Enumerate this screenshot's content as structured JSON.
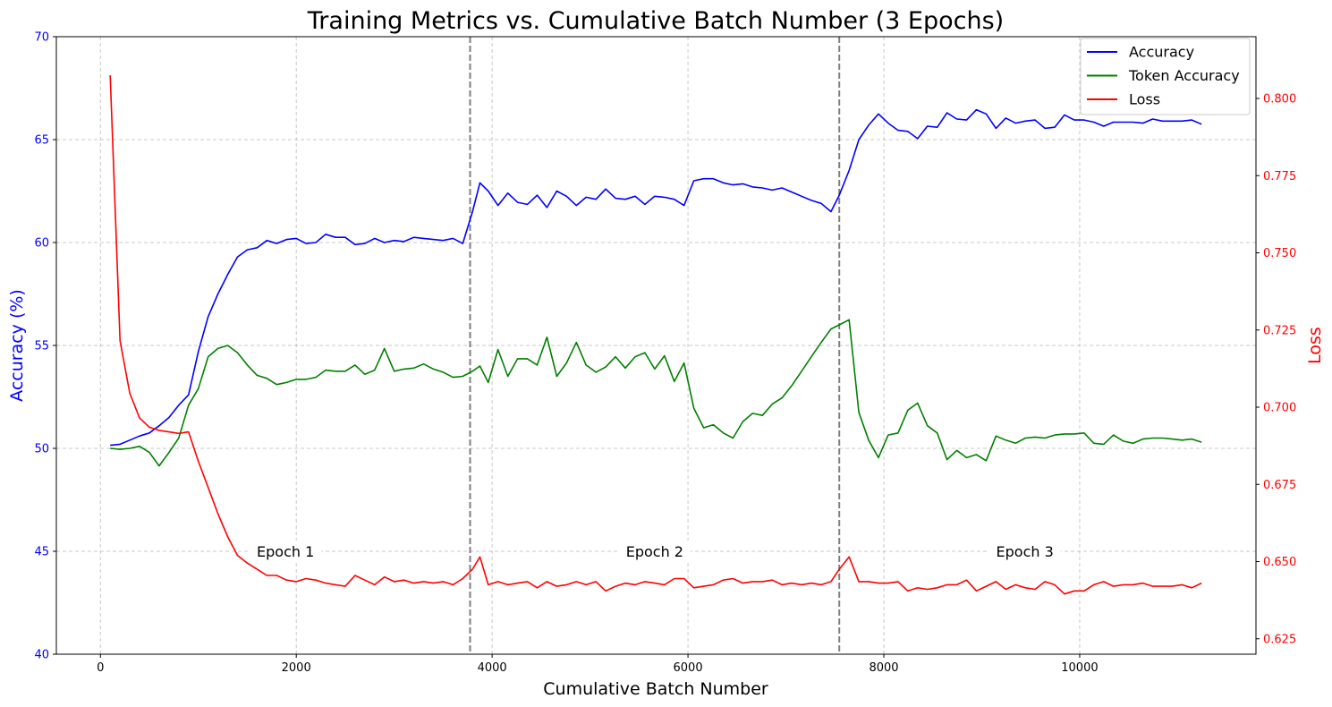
{
  "chart_data": {
    "type": "line",
    "title": "Training Metrics vs. Cumulative Batch Number (3 Epochs)",
    "xlabel": "Cumulative Batch Number",
    "ylabel_left": "Accuracy (%)",
    "ylabel_right": "Loss",
    "xlim": [
      -450,
      11800
    ],
    "ylim_left": [
      40,
      70
    ],
    "ylim_right": [
      0.62,
      0.82
    ],
    "x_ticks": [
      0,
      2000,
      4000,
      6000,
      8000,
      10000
    ],
    "y_left_ticks": [
      40,
      45,
      50,
      55,
      60,
      65,
      70
    ],
    "y_right_ticks": [
      0.625,
      0.65,
      0.675,
      0.7,
      0.725,
      0.75,
      0.775,
      0.8
    ],
    "grid": true,
    "legend_position": "top-right",
    "colors": {
      "accuracy": "#0000ff",
      "token_accuracy": "#008000",
      "loss": "#ff0000",
      "epoch_line": "#7f7f7f",
      "left_axis": "#0000ff",
      "right_axis": "#ff0000"
    },
    "epoch_boundaries": [
      3775,
      7545
    ],
    "epoch_labels": [
      {
        "text": "Epoch 1",
        "x": 1890,
        "y": 45
      },
      {
        "text": "Epoch 2",
        "x": 5660,
        "y": 45
      },
      {
        "text": "Epoch 3",
        "x": 9440,
        "y": 45
      }
    ],
    "series": [
      {
        "name": "Accuracy",
        "axis": "left",
        "color": "#0000ff",
        "x": [
          100,
          200,
          300,
          400,
          500,
          600,
          700,
          800,
          900,
          1000,
          1100,
          1200,
          1300,
          1400,
          1500,
          1600,
          1700,
          1800,
          1900,
          2000,
          2100,
          2200,
          2300,
          2400,
          2500,
          2600,
          2700,
          2800,
          2900,
          3000,
          3100,
          3200,
          3300,
          3400,
          3500,
          3600,
          3700,
          3800,
          3875,
          3960,
          4060,
          4160,
          4260,
          4360,
          4460,
          4560,
          4660,
          4760,
          4860,
          4960,
          5060,
          5160,
          5260,
          5360,
          5460,
          5560,
          5660,
          5760,
          5860,
          5960,
          6060,
          6160,
          6260,
          6360,
          6460,
          6560,
          6660,
          6760,
          6860,
          6960,
          7060,
          7160,
          7260,
          7360,
          7460,
          7545,
          7645,
          7745,
          7845,
          7945,
          8045,
          8145,
          8245,
          8345,
          8445,
          8545,
          8645,
          8745,
          8845,
          8945,
          9045,
          9145,
          9245,
          9345,
          9445,
          9545,
          9645,
          9745,
          9845,
          9945,
          10045,
          10145,
          10245,
          10345,
          10445,
          10545,
          10645,
          10745,
          10845,
          10945,
          11045,
          11145,
          11245
        ],
        "values": [
          50.15,
          50.2,
          50.4,
          50.6,
          50.75,
          51.1,
          51.5,
          52.1,
          52.6,
          54.7,
          56.4,
          57.5,
          58.45,
          59.3,
          59.65,
          59.75,
          60.1,
          59.95,
          60.15,
          60.2,
          59.95,
          60.0,
          60.4,
          60.25,
          60.25,
          59.9,
          59.95,
          60.2,
          60.0,
          60.1,
          60.05,
          60.25,
          60.2,
          60.15,
          60.1,
          60.2,
          59.95,
          61.5,
          62.9,
          62.5,
          61.8,
          62.4,
          61.95,
          61.85,
          62.3,
          61.7,
          62.5,
          62.25,
          61.8,
          62.2,
          62.1,
          62.6,
          62.15,
          62.1,
          62.25,
          61.85,
          62.25,
          62.2,
          62.1,
          61.8,
          63.0,
          63.1,
          63.1,
          62.9,
          62.8,
          62.85,
          62.7,
          62.65,
          62.55,
          62.65,
          62.45,
          62.25,
          62.05,
          61.9,
          61.5,
          62.3,
          63.5,
          65.0,
          65.7,
          66.25,
          65.8,
          65.45,
          65.4,
          65.05,
          65.65,
          65.6,
          66.3,
          66.0,
          65.95,
          66.45,
          66.25,
          65.55,
          66.05,
          65.8,
          65.9,
          65.95,
          65.55,
          65.6,
          66.2,
          65.95,
          65.95,
          65.85,
          65.65,
          65.85,
          65.85,
          65.85,
          65.8,
          66.0,
          65.9,
          65.9,
          65.9,
          65.95,
          65.75
        ]
      },
      {
        "name": "Token Accuracy",
        "axis": "left",
        "color": "#008000",
        "x": [
          100,
          200,
          300,
          400,
          500,
          600,
          700,
          800,
          900,
          1000,
          1100,
          1200,
          1300,
          1400,
          1500,
          1600,
          1700,
          1800,
          1900,
          2000,
          2100,
          2200,
          2300,
          2400,
          2500,
          2600,
          2700,
          2800,
          2900,
          3000,
          3100,
          3200,
          3300,
          3400,
          3500,
          3600,
          3700,
          3800,
          3875,
          3960,
          4060,
          4160,
          4260,
          4360,
          4460,
          4560,
          4660,
          4760,
          4860,
          4960,
          5060,
          5160,
          5260,
          5360,
          5460,
          5560,
          5660,
          5760,
          5860,
          5960,
          6060,
          6160,
          6260,
          6360,
          6460,
          6560,
          6660,
          6760,
          6860,
          6960,
          7060,
          7160,
          7260,
          7360,
          7460,
          7545,
          7645,
          7745,
          7845,
          7945,
          8045,
          8145,
          8245,
          8345,
          8445,
          8545,
          8645,
          8745,
          8845,
          8945,
          9045,
          9145,
          9245,
          9345,
          9445,
          9545,
          9645,
          9745,
          9845,
          9945,
          10045,
          10145,
          10245,
          10345,
          10445,
          10545,
          10645,
          10745,
          10845,
          10945,
          11045,
          11145,
          11245
        ],
        "values": [
          50.0,
          49.95,
          50.0,
          50.1,
          49.8,
          49.15,
          49.8,
          50.5,
          52.1,
          52.9,
          54.45,
          54.85,
          55.0,
          54.65,
          54.05,
          53.55,
          53.4,
          53.1,
          53.2,
          53.35,
          53.35,
          53.45,
          53.8,
          53.75,
          53.75,
          54.05,
          53.6,
          53.8,
          54.85,
          53.75,
          53.85,
          53.9,
          54.1,
          53.85,
          53.7,
          53.45,
          53.5,
          53.75,
          54.0,
          53.2,
          54.8,
          53.5,
          54.35,
          54.35,
          54.05,
          55.4,
          53.5,
          54.15,
          55.15,
          54.05,
          53.7,
          53.95,
          54.45,
          53.9,
          54.45,
          54.65,
          53.85,
          54.5,
          53.25,
          54.15,
          51.95,
          51.0,
          51.15,
          50.75,
          50.5,
          51.3,
          51.7,
          51.6,
          52.15,
          52.45,
          53.05,
          53.75,
          54.45,
          55.15,
          55.8,
          56.0,
          56.25,
          51.75,
          50.4,
          49.55,
          50.65,
          50.75,
          51.85,
          52.2,
          51.1,
          50.75,
          49.45,
          49.9,
          49.55,
          49.7,
          49.4,
          50.6,
          50.4,
          50.25,
          50.5,
          50.55,
          50.5,
          50.65,
          50.7,
          50.7,
          50.75,
          50.25,
          50.2,
          50.65,
          50.35,
          50.25,
          50.45,
          50.5,
          50.5,
          50.45,
          50.4,
          50.45,
          50.3
        ]
      },
      {
        "name": "Loss",
        "axis": "right",
        "color": "#ff0000",
        "x": [
          100,
          200,
          300,
          400,
          500,
          600,
          700,
          800,
          900,
          1000,
          1100,
          1200,
          1300,
          1400,
          1500,
          1600,
          1700,
          1800,
          1900,
          2000,
          2100,
          2200,
          2300,
          2400,
          2500,
          2600,
          2700,
          2800,
          2900,
          3000,
          3100,
          3200,
          3300,
          3400,
          3500,
          3600,
          3700,
          3800,
          3875,
          3960,
          4060,
          4160,
          4260,
          4360,
          4460,
          4560,
          4660,
          4760,
          4860,
          4960,
          5060,
          5160,
          5260,
          5360,
          5460,
          5560,
          5660,
          5760,
          5860,
          5960,
          6060,
          6160,
          6260,
          6360,
          6460,
          6560,
          6660,
          6760,
          6860,
          6960,
          7060,
          7160,
          7260,
          7360,
          7460,
          7545,
          7645,
          7745,
          7845,
          7945,
          8045,
          8145,
          8245,
          8345,
          8445,
          8545,
          8645,
          8745,
          8845,
          8945,
          9045,
          9145,
          9245,
          9345,
          9445,
          9545,
          9645,
          9745,
          9845,
          9945,
          10045,
          10145,
          10245,
          10345,
          10445,
          10545,
          10645,
          10745,
          10845,
          10945,
          11045,
          11145,
          11245
        ],
        "values": [
          0.8075,
          0.7215,
          0.7045,
          0.6965,
          0.6935,
          0.6925,
          0.692,
          0.6915,
          0.692,
          0.6825,
          0.674,
          0.6655,
          0.658,
          0.652,
          0.6495,
          0.6475,
          0.6455,
          0.6455,
          0.644,
          0.6435,
          0.6445,
          0.644,
          0.643,
          0.6425,
          0.642,
          0.6455,
          0.644,
          0.6425,
          0.645,
          0.6435,
          0.644,
          0.643,
          0.6435,
          0.643,
          0.6435,
          0.6425,
          0.6445,
          0.6475,
          0.6515,
          0.6425,
          0.6435,
          0.6425,
          0.643,
          0.6435,
          0.6415,
          0.6435,
          0.642,
          0.6425,
          0.6435,
          0.6425,
          0.6435,
          0.6405,
          0.642,
          0.643,
          0.6425,
          0.6435,
          0.643,
          0.6425,
          0.6445,
          0.6445,
          0.6415,
          0.642,
          0.6425,
          0.644,
          0.6445,
          0.643,
          0.6435,
          0.6435,
          0.644,
          0.6425,
          0.643,
          0.6425,
          0.643,
          0.6425,
          0.6435,
          0.6475,
          0.6515,
          0.6435,
          0.6435,
          0.643,
          0.643,
          0.6435,
          0.6405,
          0.6415,
          0.641,
          0.6415,
          0.6425,
          0.6425,
          0.644,
          0.6405,
          0.642,
          0.6435,
          0.641,
          0.6425,
          0.6415,
          0.641,
          0.6435,
          0.6425,
          0.6395,
          0.6405,
          0.6405,
          0.6425,
          0.6435,
          0.642,
          0.6425,
          0.6425,
          0.643,
          0.642,
          0.642,
          0.642,
          0.6425,
          0.6415,
          0.643
        ]
      }
    ]
  }
}
